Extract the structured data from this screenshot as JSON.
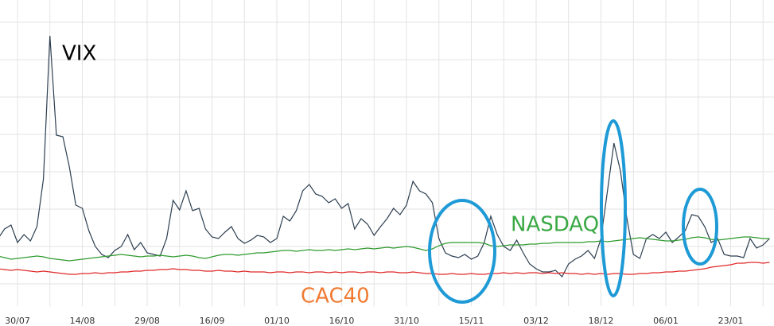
{
  "chart_data": {
    "type": "line",
    "categories": [
      null,
      null,
      null,
      "30/07",
      null,
      null,
      null,
      null,
      null,
      null,
      null,
      null,
      null,
      "14/08",
      null,
      null,
      null,
      null,
      null,
      null,
      null,
      null,
      null,
      "29/08",
      null,
      null,
      null,
      null,
      null,
      null,
      null,
      null,
      null,
      "16/09",
      null,
      null,
      null,
      null,
      null,
      null,
      null,
      null,
      null,
      "01/10",
      null,
      null,
      null,
      null,
      null,
      null,
      null,
      null,
      null,
      "16/10",
      null,
      null,
      null,
      null,
      null,
      null,
      null,
      null,
      null,
      "31/10",
      null,
      null,
      null,
      null,
      null,
      null,
      null,
      null,
      null,
      "15/11",
      null,
      null,
      null,
      null,
      null,
      null,
      null,
      null,
      null,
      "03/12",
      null,
      null,
      null,
      null,
      null,
      null,
      null,
      null,
      null,
      "18/12",
      null,
      null,
      null,
      null,
      null,
      null,
      null,
      null,
      null,
      "06/01",
      null,
      null,
      null,
      null,
      null,
      null,
      null,
      null,
      null,
      "23/01",
      null,
      null,
      null,
      null,
      null,
      null
    ],
    "series": [
      {
        "name": "VIX",
        "color": "#2c3e50",
        "label_color": "#000000",
        "values": [
          85,
          97,
          102,
          80,
          90,
          82,
          100,
          160,
          340,
          215,
          213,
          175,
          127,
          123,
          95,
          75,
          65,
          61,
          70,
          75,
          90,
          71,
          80,
          67,
          65,
          63,
          85,
          133,
          121,
          145,
          120,
          123,
          97,
          87,
          85,
          93,
          100,
          85,
          79,
          83,
          89,
          87,
          80,
          85,
          113,
          107,
          120,
          145,
          153,
          141,
          138,
          130,
          135,
          123,
          129,
          97,
          110,
          103,
          89,
          100,
          110,
          123,
          115,
          127,
          157,
          145,
          141,
          130,
          85,
          67,
          63,
          61,
          65,
          59,
          63,
          80,
          113,
          90,
          75,
          70,
          83,
          67,
          53,
          47,
          43,
          43,
          45,
          37,
          53,
          59,
          63,
          70,
          60,
          85,
          145,
          205,
          170,
          110,
          65,
          60,
          85,
          90,
          85,
          93,
          80,
          87,
          95,
          115,
          113,
          100,
          80,
          85,
          65,
          63,
          63,
          61,
          85,
          73,
          77,
          85
        ]
      },
      {
        "name": "NASDAQ",
        "color": "#2e9a2e",
        "label_color": "#3aa845",
        "values": [
          63,
          61,
          59,
          60,
          61,
          62,
          63,
          62,
          60,
          59,
          58,
          57,
          58,
          59,
          60,
          61,
          62,
          63,
          64,
          65,
          64,
          63,
          62,
          63,
          63,
          64,
          63,
          62,
          63,
          64,
          63,
          61,
          60,
          62,
          64,
          65,
          65,
          64,
          65,
          66,
          67,
          67,
          68,
          69,
          70,
          70,
          69,
          70,
          71,
          70,
          70,
          71,
          70,
          71,
          72,
          71,
          72,
          73,
          72,
          73,
          74,
          73,
          74,
          75,
          74,
          72,
          70,
          72,
          76,
          79,
          80,
          80,
          80,
          80,
          80,
          79,
          76,
          75,
          76,
          77,
          77,
          77,
          78,
          78,
          79,
          79,
          80,
          80,
          80,
          80,
          80,
          81,
          81,
          82,
          81,
          82,
          83,
          84,
          85,
          86,
          85,
          84,
          83,
          82,
          82,
          83,
          84,
          86,
          87,
          86,
          84,
          83,
          84,
          85,
          86,
          87,
          87,
          86,
          85,
          85
        ]
      },
      {
        "name": "CAC40",
        "color": "#e02828",
        "label_color": "#f07a30",
        "values": [
          47,
          46,
          45,
          46,
          45,
          44,
          43,
          44,
          43,
          42,
          41,
          40,
          40,
          41,
          41,
          42,
          41,
          42,
          42,
          43,
          43,
          44,
          44,
          45,
          45,
          46,
          46,
          47,
          46,
          46,
          45,
          45,
          44,
          44,
          45,
          44,
          44,
          43,
          44,
          43,
          43,
          43,
          42,
          43,
          43,
          42,
          43,
          43,
          42,
          43,
          43,
          42,
          43,
          42,
          43,
          43,
          42,
          43,
          43,
          42,
          43,
          43,
          42,
          42,
          43,
          42,
          41,
          41,
          40,
          40,
          41,
          40,
          40,
          41,
          40,
          40,
          41,
          41,
          42,
          41,
          42,
          41,
          42,
          42,
          41,
          42,
          41,
          42,
          41,
          41,
          40,
          41,
          40,
          41,
          40,
          41,
          41,
          40,
          40,
          41,
          41,
          42,
          42,
          43,
          43,
          44,
          44,
          45,
          46,
          47,
          49,
          50,
          51,
          52,
          54,
          54,
          55,
          55,
          54,
          55
        ]
      }
    ],
    "ylim": [
      0,
      385
    ],
    "yticks": [
      28,
      75,
      122,
      169,
      216,
      263,
      310,
      357
    ],
    "grid": true
  }
}
